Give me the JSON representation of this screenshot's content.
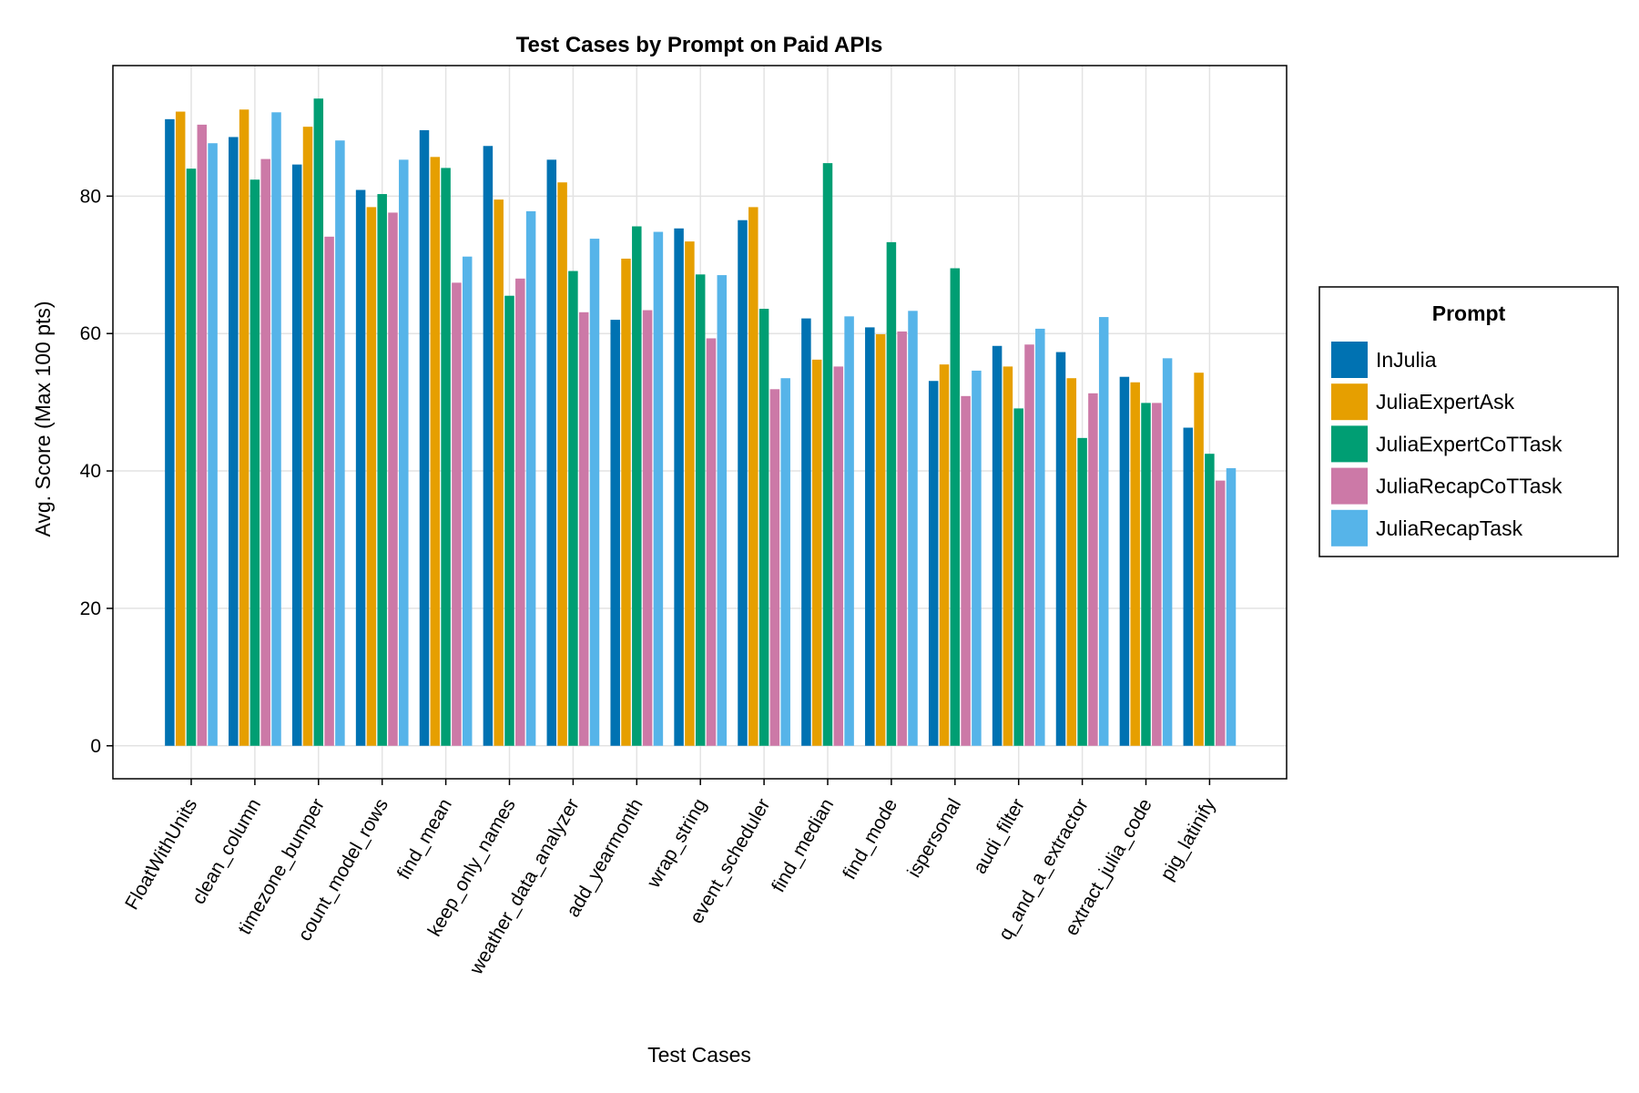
{
  "chart_data": {
    "type": "bar",
    "title": "Test Cases by Prompt on Paid APIs",
    "xlabel": "Test Cases",
    "ylabel": "Avg. Score (Max 100 pts)",
    "ylim": [
      -4.8,
      99
    ],
    "yticks": [
      0,
      20,
      40,
      60,
      80
    ],
    "grid": true,
    "legend_title": "Prompt",
    "legend_position": "right",
    "categories": [
      "FloatWithUnits",
      "clean_column",
      "timezone_bumper",
      "count_model_rows",
      "find_mean",
      "keep_only_names",
      "weather_data_analyzer",
      "add_yearmonth",
      "wrap_string",
      "event_scheduler",
      "find_median",
      "find_mode",
      "ispersonal",
      "audi_filter",
      "q_and_a_extractor",
      "extract_julia_code",
      "pig_latinify"
    ],
    "series": [
      {
        "name": "InJulia",
        "color": "#0072b2",
        "values": [
          91.2,
          88.6,
          84.6,
          80.9,
          89.6,
          87.3,
          85.3,
          62.0,
          75.3,
          76.5,
          62.2,
          60.9,
          53.1,
          58.2,
          57.3,
          53.7,
          46.3
        ]
      },
      {
        "name": "JuliaExpertAsk",
        "color": "#e69f00",
        "values": [
          92.3,
          92.6,
          90.1,
          78.4,
          85.7,
          79.5,
          82.0,
          70.9,
          73.4,
          78.4,
          56.2,
          59.9,
          55.5,
          55.2,
          53.5,
          52.9,
          54.3
        ]
      },
      {
        "name": "JuliaExpertCoTTask",
        "color": "#009e73",
        "values": [
          84.0,
          82.4,
          94.2,
          80.3,
          84.1,
          65.5,
          69.1,
          75.6,
          68.6,
          63.6,
          84.8,
          73.3,
          69.5,
          49.1,
          44.8,
          49.9,
          42.5
        ]
      },
      {
        "name": "JuliaRecapCoTTask",
        "color": "#cc79a7",
        "values": [
          90.4,
          85.4,
          74.1,
          77.6,
          67.4,
          68.0,
          63.1,
          63.4,
          59.3,
          51.9,
          55.2,
          60.3,
          50.9,
          58.4,
          51.3,
          49.9,
          38.6
        ]
      },
      {
        "name": "JuliaRecapTask",
        "color": "#56b4e9",
        "values": [
          87.7,
          92.2,
          88.1,
          85.3,
          71.2,
          77.8,
          73.8,
          74.8,
          68.5,
          53.5,
          62.5,
          63.3,
          54.6,
          60.7,
          62.4,
          56.4,
          40.4
        ]
      }
    ]
  }
}
